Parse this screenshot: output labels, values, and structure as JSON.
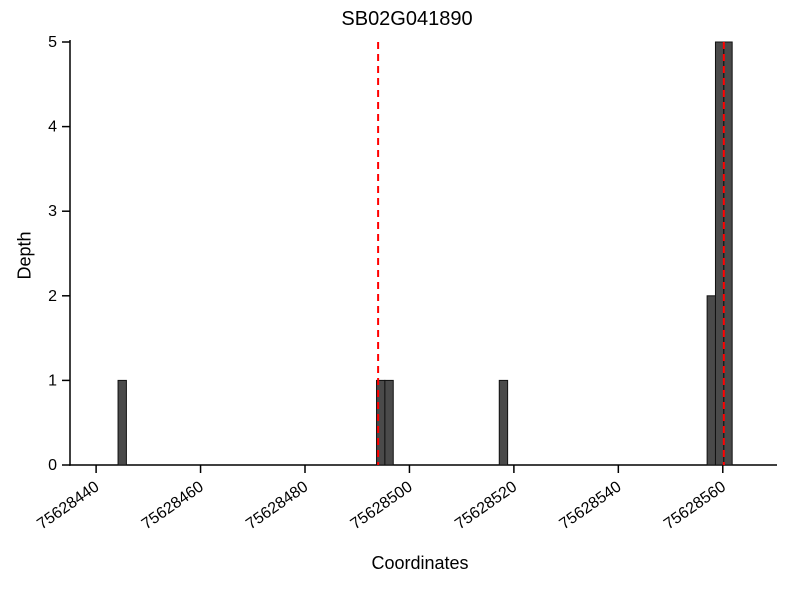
{
  "chart_data": {
    "type": "bar",
    "title": "SB02G041890",
    "xlabel": "Coordinates",
    "ylabel": "Depth",
    "xlim": [
      75628435,
      75628570
    ],
    "ylim": [
      0,
      5
    ],
    "xticks": [
      75628440,
      75628460,
      75628480,
      75628500,
      75628520,
      75628540,
      75628560
    ],
    "yticks": [
      0,
      1,
      2,
      3,
      4,
      5
    ],
    "bar_width": 1.6,
    "bars": [
      {
        "pos": 75628445,
        "depth": 1
      },
      {
        "pos": 75628494.5,
        "depth": 1
      },
      {
        "pos": 75628496.1,
        "depth": 1
      },
      {
        "pos": 75628518,
        "depth": 1
      },
      {
        "pos": 75628557.8,
        "depth": 2
      },
      {
        "pos": 75628559.4,
        "depth": 5
      },
      {
        "pos": 75628561,
        "depth": 5
      }
    ],
    "marker_lines": [
      75628494,
      75628560.2
    ],
    "legend": null,
    "grid": false,
    "colors": {
      "bar_fill": "#4a4a4a",
      "bar_stroke": "#111111",
      "marker": "#ff0000",
      "axis": "#000000"
    }
  }
}
